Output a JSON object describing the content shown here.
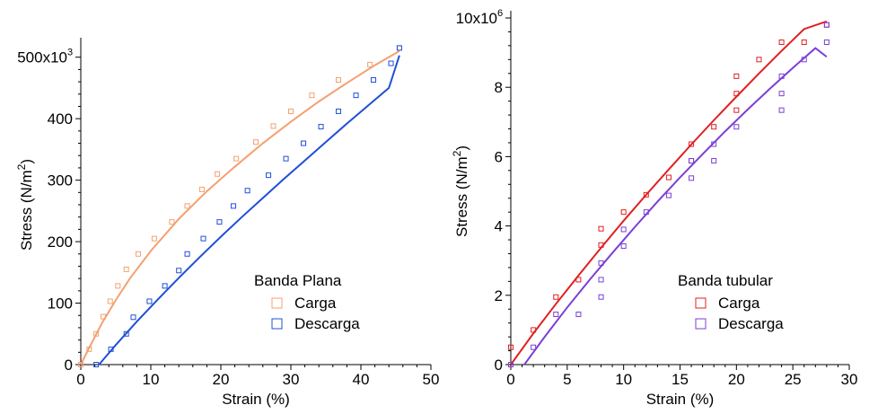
{
  "chart_data": [
    {
      "type": "scatter",
      "xlabel": "Strain (%)",
      "ylabel": "Stress (N/m",
      "ylabel_sup": "2",
      "ylabel_close": ")",
      "xlim": [
        0,
        50
      ],
      "ylim": [
        0,
        520000
      ],
      "xticks": [
        0,
        10,
        20,
        30,
        40,
        50
      ],
      "yticks": [
        0,
        100000,
        200000,
        300000,
        400000,
        500000
      ],
      "ytick_labels": [
        "0",
        "100",
        "200",
        "300",
        "400",
        "500x10"
      ],
      "ytick_top_exp": "3",
      "legend": {
        "title": "Banda Plana",
        "placement": "bottom-right"
      },
      "grid": false,
      "series": [
        {
          "name": "Carga",
          "color": "#f4a070",
          "x": [
            0,
            1.2,
            2.2,
            3.2,
            4.2,
            5.3,
            6.5,
            8.2,
            10.5,
            13,
            15.2,
            17.3,
            19.5,
            22.2,
            25,
            27.5,
            30,
            33,
            36.8,
            41.3,
            45.5
          ],
          "y": [
            0,
            25000,
            50000,
            78000,
            103000,
            128000,
            155000,
            180000,
            205000,
            232000,
            258000,
            285000,
            310000,
            335000,
            362000,
            388000,
            412000,
            438000,
            463000,
            488000,
            515000
          ],
          "fit_x": [
            0,
            1,
            2,
            3,
            5,
            7,
            10,
            14,
            18,
            22,
            26,
            30,
            34,
            38,
            42,
            45.5
          ],
          "fit_y": [
            0,
            23000,
            45000,
            67000,
            105000,
            140000,
            185000,
            237000,
            282000,
            322000,
            360000,
            395000,
            428000,
            458000,
            487000,
            510000
          ]
        },
        {
          "name": "Descarga",
          "color": "#1f4fd8",
          "x": [
            2.2,
            4.3,
            6.5,
            7.5,
            9.8,
            12,
            14,
            15.2,
            17.5,
            19.8,
            21.8,
            23.8,
            26.8,
            29.3,
            31.8,
            34.3,
            36.8,
            39.3,
            41.8,
            44.3,
            45.5
          ],
          "y": [
            0,
            25000,
            50000,
            77000,
            103000,
            128000,
            153000,
            180000,
            205000,
            232000,
            258000,
            283000,
            308000,
            335000,
            360000,
            387000,
            412000,
            438000,
            463000,
            490000,
            515000
          ],
          "fit_x": [
            2.6,
            5,
            8,
            11,
            14,
            17,
            20,
            23,
            26,
            29,
            32,
            35,
            38,
            41,
            44,
            45.5
          ],
          "fit_y": [
            0,
            32000,
            70000,
            106000,
            141000,
            175000,
            208000,
            240000,
            271000,
            302000,
            332000,
            362000,
            392000,
            421000,
            450000,
            503000
          ]
        }
      ]
    },
    {
      "type": "scatter",
      "xlabel": "Strain (%)",
      "ylabel": "Stress (N/m",
      "ylabel_sup": "2",
      "ylabel_close": ")",
      "xlim": [
        0,
        30
      ],
      "ylim": [
        0,
        10000000
      ],
      "xticks": [
        0,
        5,
        10,
        15,
        20,
        25,
        30
      ],
      "yticks": [
        0,
        2000000,
        4000000,
        6000000,
        8000000,
        10000000
      ],
      "ytick_labels": [
        "0",
        "2",
        "4",
        "6",
        "8",
        "10x10"
      ],
      "ytick_top_exp": "6",
      "legend": {
        "title": "Banda tubular",
        "placement": "bottom-right"
      },
      "grid": false,
      "series": [
        {
          "name": "Carga",
          "color": "#e02020",
          "x": [
            0,
            2,
            4,
            6,
            8,
            8,
            10,
            12,
            14,
            16,
            16,
            18,
            20,
            20,
            20,
            22,
            24,
            26,
            28
          ],
          "y": [
            500000,
            1000000,
            1950000,
            2450000,
            3450000,
            3920000,
            4400000,
            4900000,
            5400000,
            5880000,
            6360000,
            6860000,
            7340000,
            7820000,
            8320000,
            8800000,
            9300000,
            9300000,
            9800000
          ],
          "fit_x": [
            0,
            2,
            4,
            6,
            8,
            10,
            12,
            14,
            16,
            18,
            20,
            22,
            24,
            26,
            28
          ],
          "fit_y": [
            0,
            900000,
            1750000,
            2570000,
            3370000,
            4150000,
            4900000,
            5630000,
            6350000,
            7050000,
            7730000,
            8400000,
            9050000,
            9680000,
            9900000
          ]
        },
        {
          "name": "Descarga",
          "color": "#7b3fd6",
          "x": [
            0,
            2,
            4,
            6,
            8,
            8,
            8,
            10,
            10,
            12,
            14,
            16,
            16,
            18,
            18,
            20,
            24,
            24,
            24,
            26,
            28,
            28
          ],
          "y": [
            0,
            500000,
            1450000,
            1450000,
            1950000,
            2450000,
            2930000,
            3420000,
            3900000,
            4400000,
            4880000,
            5380000,
            5880000,
            5880000,
            6360000,
            6860000,
            7340000,
            7820000,
            8320000,
            8800000,
            9300000,
            9800000
          ],
          "fit_x": [
            1.2,
            3,
            5,
            7,
            9,
            11,
            13,
            15,
            17,
            19,
            21,
            23,
            25,
            27,
            28
          ],
          "fit_y": [
            0,
            800000,
            1650000,
            2450000,
            3220000,
            3970000,
            4700000,
            5400000,
            6070000,
            6730000,
            7360000,
            7970000,
            8560000,
            9130000,
            8880000
          ]
        }
      ]
    }
  ]
}
